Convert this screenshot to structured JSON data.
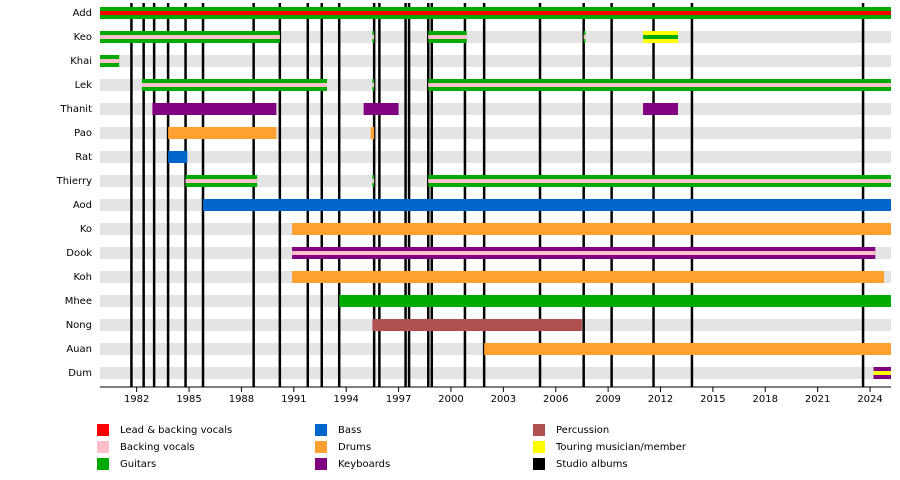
{
  "chart_data": {
    "type": "timeline",
    "xlim": [
      1979.9,
      2025.2
    ],
    "xticks": [
      1982,
      1985,
      1988,
      1991,
      1994,
      1997,
      2000,
      2003,
      2006,
      2009,
      2012,
      2015,
      2018,
      2021,
      2024
    ],
    "legend": [
      {
        "name": "Lead & backing vocals",
        "color": "#ff0000"
      },
      {
        "name": "Backing vocals",
        "color": "#ffc0cb"
      },
      {
        "name": "Guitars",
        "color": "#00aa00"
      },
      {
        "name": "Bass",
        "color": "#0066cc"
      },
      {
        "name": "Drums",
        "color": "#ffa030"
      },
      {
        "name": "Keyboards",
        "color": "#800080"
      },
      {
        "name": "Percussion",
        "color": "#b05050"
      },
      {
        "name": "Touring musician/member",
        "color": "#ffff00"
      },
      {
        "name": "Studio albums",
        "color": "#000000"
      }
    ],
    "albums": [
      1981.7,
      1982.4,
      1983.0,
      1983.8,
      1984.8,
      1985.8,
      1988.7,
      1990.2,
      1991.8,
      1992.6,
      1993.6,
      1995.6,
      1995.9,
      1997.4,
      1997.6,
      1998.7,
      1998.9,
      2000.8,
      2001.9,
      2005.1,
      2007.6,
      2009.2,
      2011.6,
      2013.8,
      2023.6
    ],
    "members": [
      {
        "name": "Add",
        "bars": [
          {
            "start": 1979.9,
            "end": 2025.2,
            "role": "Guitars",
            "stripe": "Lead & backing vocals"
          }
        ]
      },
      {
        "name": "Keo",
        "bars": [
          {
            "start": 1979.9,
            "end": 1990.2,
            "role": "Guitars",
            "stripe": "Backing vocals"
          },
          {
            "start": 1995.5,
            "end": 1995.6,
            "role": "Guitars",
            "stripe": "Backing vocals"
          },
          {
            "start": 1998.7,
            "end": 2000.9,
            "role": "Guitars",
            "stripe": "Backing vocals"
          },
          {
            "start": 2007.6,
            "end": 2007.7,
            "role": "Guitars",
            "stripe": "Backing vocals"
          },
          {
            "start": 2011.0,
            "end": 2013.0,
            "role": "Touring musician/member",
            "stripe": "Guitars"
          }
        ]
      },
      {
        "name": "Khai",
        "bars": [
          {
            "start": 1979.9,
            "end": 1981.0,
            "role": "Guitars",
            "stripe": "Backing vocals"
          }
        ]
      },
      {
        "name": "Lek",
        "bars": [
          {
            "start": 1982.3,
            "end": 1992.9,
            "role": "Guitars",
            "stripe": "Backing vocals"
          },
          {
            "start": 1995.5,
            "end": 1995.6,
            "role": "Guitars",
            "stripe": "Backing vocals"
          },
          {
            "start": 1998.7,
            "end": 2025.2,
            "role": "Guitars",
            "stripe": "Backing vocals"
          }
        ]
      },
      {
        "name": "Thanit",
        "bars": [
          {
            "start": 1982.9,
            "end": 1990.0,
            "role": "Keyboards"
          },
          {
            "start": 1995.0,
            "end": 1997.0,
            "role": "Keyboards"
          },
          {
            "start": 2011.0,
            "end": 2013.0,
            "role": "Keyboards"
          }
        ]
      },
      {
        "name": "Pao",
        "bars": [
          {
            "start": 1983.8,
            "end": 1990.0,
            "role": "Drums"
          },
          {
            "start": 1995.4,
            "end": 1995.6,
            "role": "Drums"
          }
        ]
      },
      {
        "name": "Rat",
        "bars": [
          {
            "start": 1983.8,
            "end": 1984.9,
            "role": "Bass"
          }
        ]
      },
      {
        "name": "Thierry",
        "bars": [
          {
            "start": 1984.8,
            "end": 1988.9,
            "role": "Guitars",
            "stripe": "Backing vocals"
          },
          {
            "start": 1995.5,
            "end": 1995.6,
            "role": "Guitars",
            "stripe": "Backing vocals"
          },
          {
            "start": 1998.7,
            "end": 2025.2,
            "role": "Guitars",
            "stripe": "Backing vocals"
          }
        ]
      },
      {
        "name": "Aod",
        "bars": [
          {
            "start": 1985.8,
            "end": 2025.2,
            "role": "Bass"
          }
        ]
      },
      {
        "name": "Ko",
        "bars": [
          {
            "start": 1990.9,
            "end": 2025.2,
            "role": "Drums"
          }
        ]
      },
      {
        "name": "Dook",
        "bars": [
          {
            "start": 1990.9,
            "end": 2024.3,
            "role": "Keyboards",
            "stripe": "Backing vocals"
          }
        ]
      },
      {
        "name": "Koh",
        "bars": [
          {
            "start": 1990.9,
            "end": 2024.8,
            "role": "Drums"
          }
        ]
      },
      {
        "name": "Mhee",
        "bars": [
          {
            "start": 1993.6,
            "end": 2025.2,
            "role": "Guitars"
          }
        ]
      },
      {
        "name": "Nong",
        "bars": [
          {
            "start": 1995.5,
            "end": 2007.5,
            "role": "Percussion"
          }
        ]
      },
      {
        "name": "Auan",
        "bars": [
          {
            "start": 2001.9,
            "end": 2025.2,
            "role": "Drums"
          }
        ]
      },
      {
        "name": "Dum",
        "bars": [
          {
            "start": 2024.2,
            "end": 2025.2,
            "role": "Keyboards",
            "stripe": "Touring musician/member"
          }
        ]
      }
    ]
  }
}
